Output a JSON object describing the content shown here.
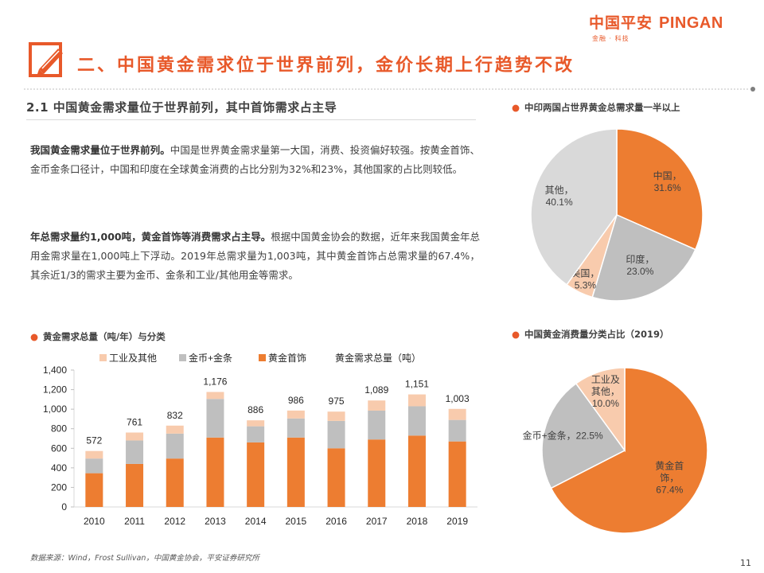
{
  "header": {
    "logo_cn": "中国平安",
    "logo_en": "PINGAN",
    "logo_sub": "金融 · 科技",
    "title": "二、中国黄金需求位于世界前列，金价长期上行趋势不改"
  },
  "section": {
    "heading": "2.1  中国黄金需求量位于世界前列，其中首饰需求占主导"
  },
  "paragraphs": {
    "p1_bold": "我国黄金需求量位于世界前列。",
    "p1_text": "中国是世界黄金需求量第一大国，消费、投资偏好较强。按黄金首饰、金币金条口径计，中国和印度在全球黄金消费的占比分别为32%和23%，其他国家的占比则较低。",
    "p2_bold": "年总需求量约1,000吨，黄金首饰等消费需求占主导。",
    "p2_text": "根据中国黄金协会的数据，近年来我国黄金年总用金需求量在1,000吨上下浮动。2019年总需求量为1,003吨，其中黄金首饰占总需求量的67.4%，其余近1/3的需求主要为金币、金条和工业/其他用金等需求。"
  },
  "chart_titles": {
    "bar": "黄金需求总量（吨/年）与分类",
    "pie1": "中印两国占世界黄金总需求量一半以上",
    "pie2": "中国黄金消费量分类占比（2019）"
  },
  "colors": {
    "accent": "#e8592a",
    "jewelry": "#ed7d31",
    "coins": "#bfbfbf",
    "industrial": "#f8cbad",
    "others": "#d9d9d9"
  },
  "chart_data": [
    {
      "type": "bar",
      "stacked": true,
      "title": "黄金需求总量（吨/年）与分类",
      "categories": [
        "2010",
        "2011",
        "2012",
        "2013",
        "2014",
        "2015",
        "2016",
        "2017",
        "2018",
        "2019"
      ],
      "series": [
        {
          "name": "黄金首饰",
          "color": "#ed7d31",
          "values": [
            345,
            440,
            495,
            710,
            660,
            710,
            600,
            690,
            730,
            670
          ]
        },
        {
          "name": "金币+金条",
          "color": "#bfbfbf",
          "values": [
            150,
            240,
            255,
            395,
            165,
            195,
            280,
            295,
            300,
            220
          ]
        },
        {
          "name": "工业及其他",
          "color": "#f8cbad",
          "values": [
            77,
            81,
            82,
            71,
            61,
            81,
            95,
            104,
            121,
            113
          ]
        }
      ],
      "totals_name": "黄金需求总量（吨）",
      "totals": [
        572,
        761,
        832,
        1176,
        886,
        986,
        975,
        1089,
        1151,
        1003
      ],
      "total_labels": [
        "572",
        "761",
        "832",
        "1,176",
        "886",
        "986",
        "975",
        "1,089",
        "1,151",
        "1,003"
      ],
      "ylim": [
        0,
        1400
      ],
      "yticks": [
        0,
        200,
        400,
        600,
        800,
        1000,
        1200,
        1400
      ],
      "ytick_labels": [
        "0",
        "200",
        "400",
        "600",
        "800",
        "1,000",
        "1,200",
        "1,400"
      ],
      "legend_position": "top"
    },
    {
      "type": "pie",
      "title": "中印两国占世界黄金总需求量一半以上",
      "slices": [
        {
          "name": "中国",
          "value": 31.6,
          "label": "31.6%",
          "color": "#ed7d31"
        },
        {
          "name": "印度",
          "value": 23.0,
          "label": "23.0%",
          "color": "#bfbfbf"
        },
        {
          "name": "美国",
          "value": 5.3,
          "label": "5.3%",
          "color": "#f8cbad"
        },
        {
          "name": "其他",
          "value": 40.1,
          "label": "40.1%",
          "color": "#d9d9d9"
        }
      ]
    },
    {
      "type": "pie",
      "title": "中国黄金消费量分类占比（2019）",
      "slices": [
        {
          "name": "黄金首饰",
          "value": 67.4,
          "label": "67.4%",
          "color": "#ed7d31"
        },
        {
          "name": "金币+金条",
          "value": 22.5,
          "label": "22.5%",
          "color": "#bfbfbf"
        },
        {
          "name": "工业及其他",
          "value": 10.0,
          "label": "10.0%",
          "color": "#f8cbad"
        }
      ]
    }
  ],
  "footer": {
    "source": "数据来源：Wind，Frost Sullivan，中国黄金协会，平安证券研究所",
    "page": "11"
  }
}
